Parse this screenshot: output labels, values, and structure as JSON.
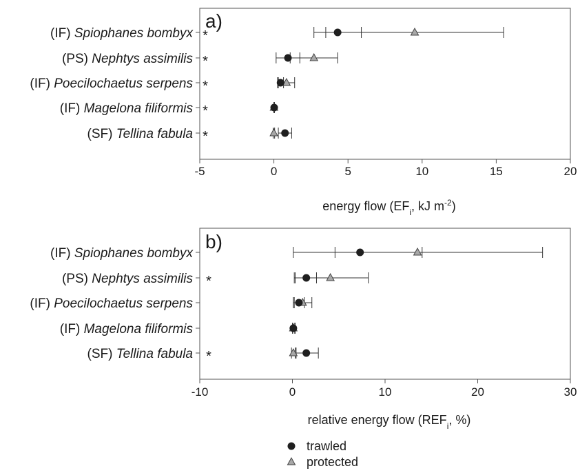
{
  "chart_data": [
    {
      "type": "scatter",
      "panel_label": "a)",
      "xlabel": {
        "pre": "energy flow (EF",
        "sub": "i",
        "mid": ", kJ m",
        "sup": "-2",
        "post": ")"
      },
      "xlim": [
        -5,
        20
      ],
      "xticks": [
        "-5",
        "0",
        "5",
        "10",
        "15",
        "20"
      ],
      "categories": [
        {
          "group": "(IF) ",
          "species": "Spiophanes bombyx",
          "star": "*"
        },
        {
          "group": "(PS) ",
          "species": "Nephtys assimilis",
          "star": "*"
        },
        {
          "group": "(IF) ",
          "species": "Poecilochaetus serpens",
          "star": "*"
        },
        {
          "group": "(IF) ",
          "species": "Magelona filiformis",
          "star": "*"
        },
        {
          "group": "(SF) ",
          "species": "Tellina fabula",
          "star": "*"
        }
      ],
      "series": [
        {
          "name": "trawled",
          "marker": "circle",
          "color": "#1f1f1f",
          "values": [
            4.3,
            0.95,
            0.45,
            0.02,
            0.75
          ],
          "err_low": [
            2.7,
            0.15,
            0.25,
            0.0,
            0.3
          ],
          "err_high": [
            5.9,
            1.75,
            0.65,
            0.04,
            1.2
          ]
        },
        {
          "name": "protected",
          "marker": "triangle",
          "color": "#a8a8a8",
          "values": [
            9.5,
            2.7,
            0.85,
            0.01,
            0.0
          ],
          "err_low": [
            3.5,
            1.1,
            0.3,
            0.0,
            -0.05
          ],
          "err_high": [
            15.5,
            4.3,
            1.4,
            0.03,
            0.05
          ]
        }
      ]
    },
    {
      "type": "scatter",
      "panel_label": "b)",
      "xlabel": {
        "pre": "relative energy flow (REF",
        "sub": "i",
        "mid": ", %)",
        "sup": "",
        "post": ""
      },
      "xlim": [
        -10,
        30
      ],
      "xticks": [
        "-10",
        "0",
        "10",
        "20",
        "30"
      ],
      "categories": [
        {
          "group": "(IF) ",
          "species": "Spiophanes bombyx",
          "star": ""
        },
        {
          "group": "(PS) ",
          "species": "Nephtys assimilis",
          "star": "*"
        },
        {
          "group": "(IF) ",
          "species": "Poecilochaetus serpens",
          "star": ""
        },
        {
          "group": "(IF) ",
          "species": "Magelona filiformis",
          "star": ""
        },
        {
          "group": "(SF) ",
          "species": "Tellina fabula",
          "star": "*"
        }
      ],
      "series": [
        {
          "name": "trawled",
          "marker": "circle",
          "color": "#1f1f1f",
          "values": [
            7.3,
            1.5,
            0.7,
            0.1,
            1.5
          ],
          "err_low": [
            0.1,
            0.2,
            0.1,
            0.0,
            0.3
          ],
          "err_high": [
            14.0,
            2.6,
            1.3,
            0.2,
            2.8
          ]
        },
        {
          "name": "protected",
          "marker": "triangle",
          "color": "#a8a8a8",
          "values": [
            13.5,
            4.1,
            1.1,
            0.1,
            0.1
          ],
          "err_low": [
            4.6,
            0.3,
            0.2,
            0.0,
            -0.1
          ],
          "err_high": [
            27.0,
            8.2,
            2.1,
            0.3,
            0.4
          ]
        }
      ]
    }
  ]
}
